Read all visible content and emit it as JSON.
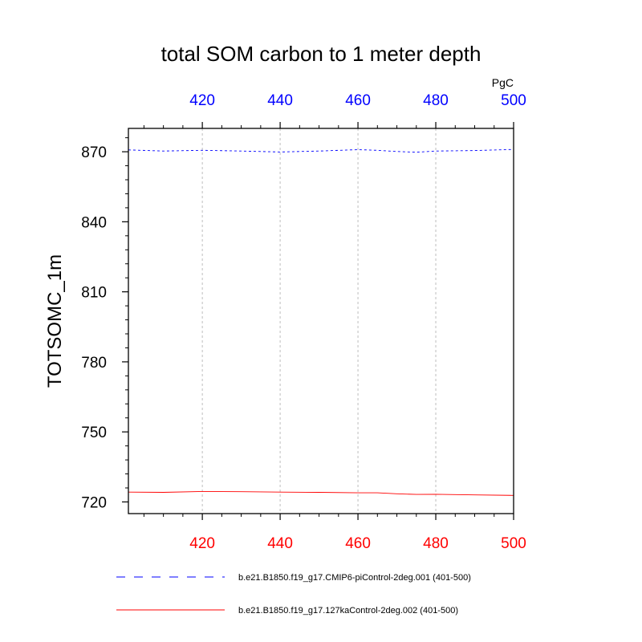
{
  "chart_data": {
    "type": "line",
    "title": "total SOM carbon to 1 meter depth",
    "units": "PgC",
    "ylabel": "TOTSOMC_1m",
    "xlim": [
      401,
      500
    ],
    "ylim": [
      715,
      880
    ],
    "x_ticks": [
      420,
      440,
      460,
      480,
      500
    ],
    "y_ticks": [
      720,
      750,
      780,
      810,
      840,
      870
    ],
    "grid_x": true,
    "top_axis_color": "#0000ff",
    "bottom_axis_color": "#ff0000",
    "x": [
      401,
      410,
      420,
      430,
      440,
      450,
      460,
      465,
      470,
      475,
      480,
      490,
      500
    ],
    "series": [
      {
        "name": "b.e21.B1850.f19_g17.CMIP6-piControl-2deg.001 (401-500)",
        "color": "#0000ff",
        "dash": "dashed",
        "values": [
          870.8,
          870.3,
          870.6,
          870.3,
          869.9,
          870.3,
          870.9,
          870.6,
          870.1,
          869.8,
          870.3,
          870.5,
          871.0
        ]
      },
      {
        "name": "b.e21.B1850.f19_g17.127kaControl-2deg.002 (401-500)",
        "color": "#ff0000",
        "dash": "solid",
        "values": [
          724.2,
          724.1,
          724.5,
          724.4,
          724.2,
          724.1,
          723.9,
          723.9,
          723.5,
          723.2,
          723.3,
          723.0,
          722.8
        ]
      }
    ]
  }
}
